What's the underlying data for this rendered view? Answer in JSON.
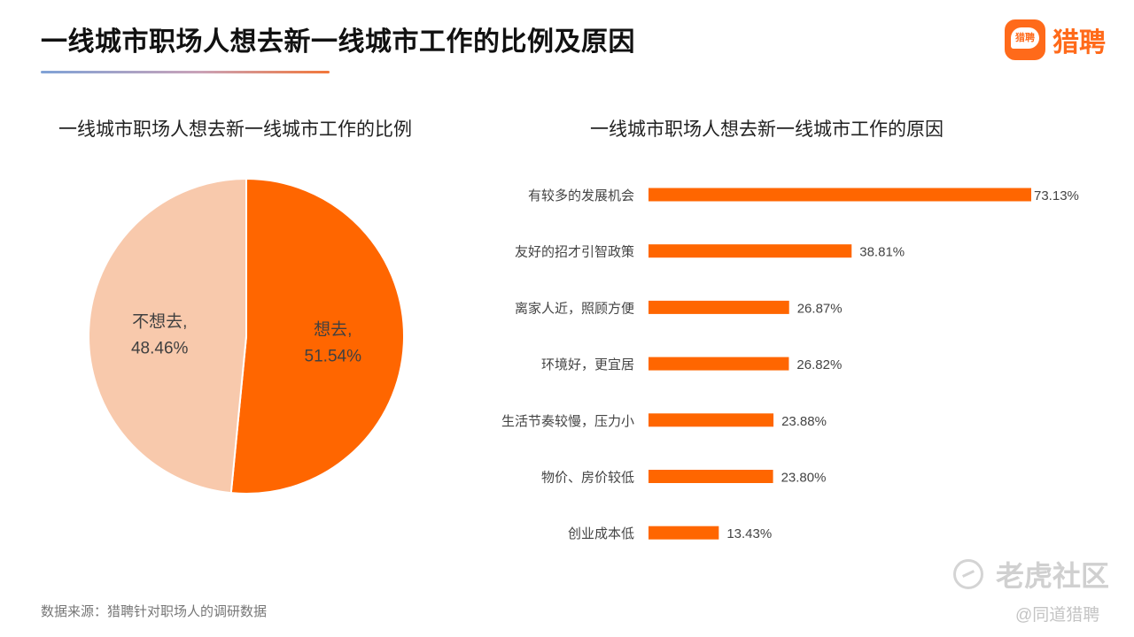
{
  "header": {
    "title": "一线城市职场人想去新一线城市工作的比例及原因",
    "brand_logo_text": "猎聘",
    "brand_name": "猎聘"
  },
  "footer": {
    "source": "数据来源：猎聘针对职场人的调研数据"
  },
  "watermark": {
    "site": "老虎社区",
    "handle": "@同道猎聘"
  },
  "colors": {
    "accent": "#ff6600",
    "pie_light": "#f8c9ac"
  },
  "chart_data": [
    {
      "type": "pie",
      "title": "一线城市职场人想去新一线城市工作的比例",
      "categories": [
        "想去",
        "不想去"
      ],
      "values": [
        51.54,
        48.46
      ],
      "labels": [
        "想去,",
        "不想去,"
      ],
      "value_labels": [
        "51.54%",
        "48.46%"
      ],
      "colors": [
        "#ff6600",
        "#f8c9ac"
      ]
    },
    {
      "type": "bar",
      "orientation": "horizontal",
      "title": "一线城市职场人想去新一线城市工作的原因",
      "categories": [
        "有较多的发展机会",
        "友好的招才引智政策",
        "离家人近，照顾方便",
        "环境好，更宜居",
        "生活节奏较慢，压力小",
        "物价、房价较低",
        "创业成本低"
      ],
      "values": [
        73.13,
        38.81,
        26.87,
        26.82,
        23.88,
        23.8,
        13.43
      ],
      "value_labels": [
        "73.13%",
        "38.81%",
        "26.87%",
        "26.82%",
        "23.88%",
        "23.80%",
        "13.43%"
      ],
      "xlim": [
        0,
        73.13
      ],
      "color": "#ff6600"
    }
  ]
}
